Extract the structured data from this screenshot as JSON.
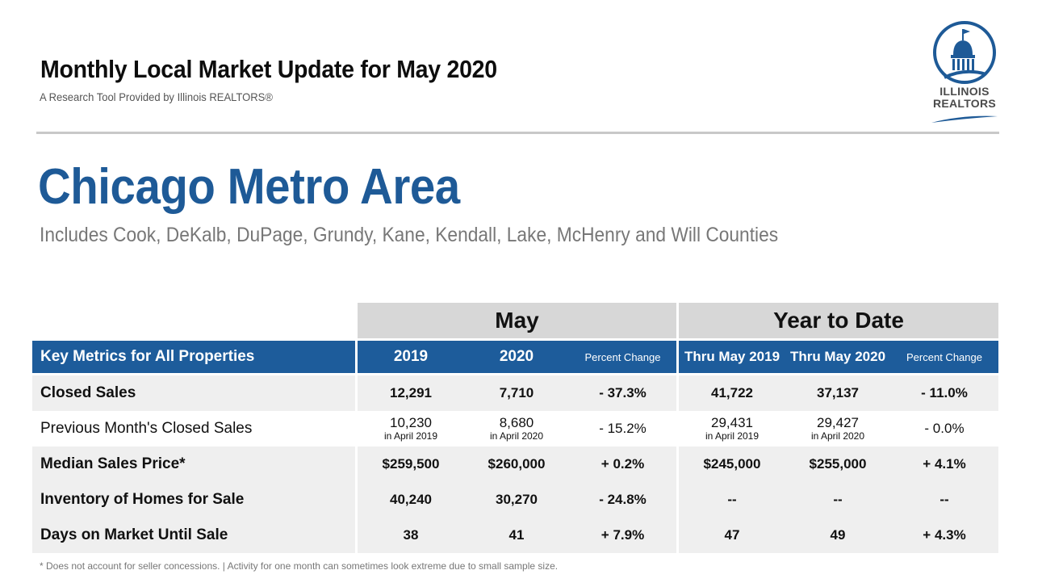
{
  "header": {
    "title": "Monthly Local Market Update for May 2020",
    "subtitle": "A Research Tool Provided by Illinois REALTORS®"
  },
  "logo": {
    "line1": "ILLINOIS",
    "line2": "REALTORS",
    "colors": {
      "blue": "#1e5a97",
      "gray": "#4b4b4b"
    }
  },
  "area": {
    "title": "Chicago Metro Area",
    "subtitle": "Includes Cook, DeKalb, DuPage, Grundy, Kane, Kendall, Lake, McHenry and Will Counties"
  },
  "table": {
    "group_headers": {
      "may": "May",
      "ytd": "Year to Date"
    },
    "columns": {
      "metric": "Key Metrics for All Properties",
      "may_2019": "2019",
      "may_2020": "2020",
      "may_pct": "Percent Change",
      "ytd_2019": "Thru May 2019",
      "ytd_2020": "Thru May 2020",
      "ytd_pct": "Percent Change"
    },
    "rows": [
      {
        "label": "Closed Sales",
        "may_2019": "12,291",
        "may_2020": "7,710",
        "may_pct": "- 37.3%",
        "ytd_2019": "41,722",
        "ytd_2020": "37,137",
        "ytd_pct": "- 11.0%"
      },
      {
        "label": "Previous Month's Closed Sales",
        "may_2019": "10,230",
        "may_2019_note": "in April 2019",
        "may_2020": "8,680",
        "may_2020_note": "in April 2020",
        "may_pct": "- 15.2%",
        "ytd_2019": "29,431",
        "ytd_2019_note": "in April 2019",
        "ytd_2020": "29,427",
        "ytd_2020_note": "in April 2020",
        "ytd_pct": "- 0.0%"
      },
      {
        "label": "Median Sales Price*",
        "may_2019": "$259,500",
        "may_2020": "$260,000",
        "may_pct": "+ 0.2%",
        "ytd_2019": "$245,000",
        "ytd_2020": "$255,000",
        "ytd_pct": "+ 4.1%"
      },
      {
        "label": "Inventory of Homes for Sale",
        "may_2019": "40,240",
        "may_2020": "30,270",
        "may_pct": "- 24.8%",
        "ytd_2019": "--",
        "ytd_2020": "--",
        "ytd_pct": "--"
      },
      {
        "label": "Days on Market Until Sale",
        "may_2019": "38",
        "may_2020": "41",
        "may_pct": "+ 7.9%",
        "ytd_2019": "47",
        "ytd_2020": "49",
        "ytd_pct": "+ 4.3%"
      }
    ]
  },
  "footnote": "* Does not account for seller concessions.  |  Activity for one month can sometimes look extreme due to small sample size."
}
